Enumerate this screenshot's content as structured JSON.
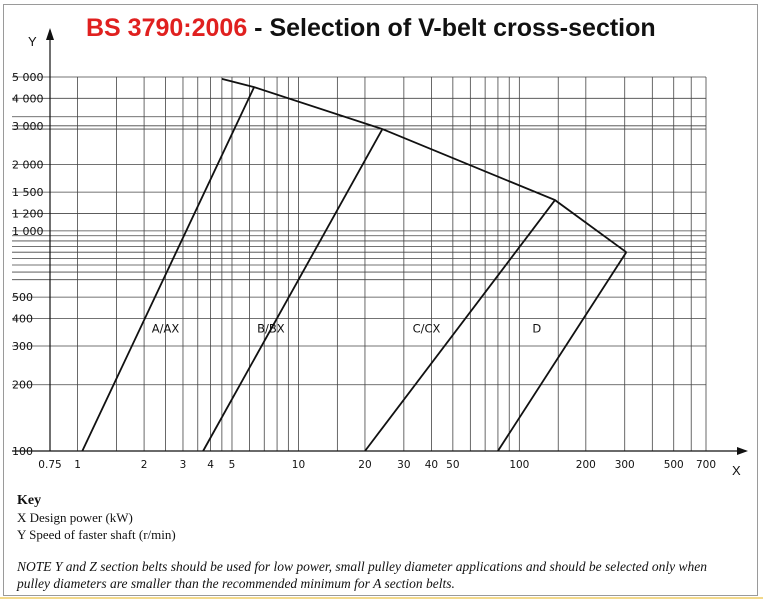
{
  "header": {
    "title_standard": "BS 3790:2006",
    "title_rest": " - Selection of V-belt cross-section",
    "title_color": "#e0201f"
  },
  "chart_data": {
    "type": "line",
    "title": "",
    "x_axis": {
      "label": "X",
      "scale": "log",
      "range": [
        0.75,
        700
      ],
      "tick_values": [
        0.75,
        1,
        2,
        3,
        4,
        5,
        10,
        20,
        30,
        40,
        50,
        100,
        200,
        300,
        500,
        700
      ],
      "tick_labels": [
        "0.75",
        "1",
        "2",
        "3",
        "4",
        "5",
        "10",
        "20",
        "30",
        "40",
        "50",
        "100",
        "200",
        "300",
        "500",
        "700"
      ],
      "gridlines": [
        0.75,
        1,
        1.5,
        2,
        2.5,
        3,
        3.5,
        4,
        4.5,
        5,
        6,
        7,
        8,
        9,
        10,
        15,
        20,
        30,
        40,
        50,
        60,
        70,
        80,
        90,
        100,
        150,
        200,
        300,
        400,
        500,
        600,
        700
      ]
    },
    "y_axis": {
      "label": "Y",
      "scale": "log",
      "range": [
        100,
        5000
      ],
      "tick_values": [
        100,
        200,
        300,
        400,
        500,
        1000,
        1200,
        1500,
        2000,
        3000,
        4000,
        5000
      ],
      "tick_labels": [
        "100",
        "200",
        "300",
        "400",
        "500",
        "1 000",
        "1 200",
        "1 500",
        "2 000",
        "3 000",
        "4 000",
        "5 000"
      ],
      "gridlines": [
        100,
        200,
        300,
        400,
        500,
        600,
        650,
        700,
        750,
        800,
        850,
        900,
        950,
        1000,
        1200,
        1500,
        2000,
        2900,
        3000,
        3300,
        4000,
        5000
      ]
    },
    "grid": true,
    "series": [
      {
        "name": "A/AX",
        "points": [
          [
            1.05,
            100
          ],
          [
            6.3,
            4500
          ]
        ]
      },
      {
        "name": "B/BX",
        "points": [
          [
            3.7,
            100
          ],
          [
            24,
            2900
          ]
        ]
      },
      {
        "name": "C/CX",
        "points": [
          [
            20,
            100
          ],
          [
            145,
            1380
          ]
        ]
      },
      {
        "name": "D",
        "points": [
          [
            80,
            100
          ],
          [
            305,
            800
          ]
        ]
      },
      {
        "name": "",
        "points": [
          [
            4.5,
            4900
          ],
          [
            6.3,
            4500
          ],
          [
            24,
            2900
          ],
          [
            145,
            1380
          ],
          [
            305,
            800
          ]
        ]
      }
    ],
    "series_label_positions": [
      {
        "name": "A/AX",
        "x": 2.5,
        "y": 345
      },
      {
        "name": "B/BX",
        "x": 7.5,
        "y": 345
      },
      {
        "name": "C/CX",
        "x": 38,
        "y": 345
      },
      {
        "name": "D",
        "x": 120,
        "y": 345
      }
    ]
  },
  "key": {
    "heading": "Key",
    "x_desc": "X   Design power (kW)",
    "y_desc": "Y   Speed of faster shaft (r/min)"
  },
  "note": {
    "lead": "NOTE",
    "text": "   Y and Z section belts should be used for low power, small pulley diameter applications and should be selected only when pulley diameters are smaller than the recommended minimum for A section belts."
  }
}
